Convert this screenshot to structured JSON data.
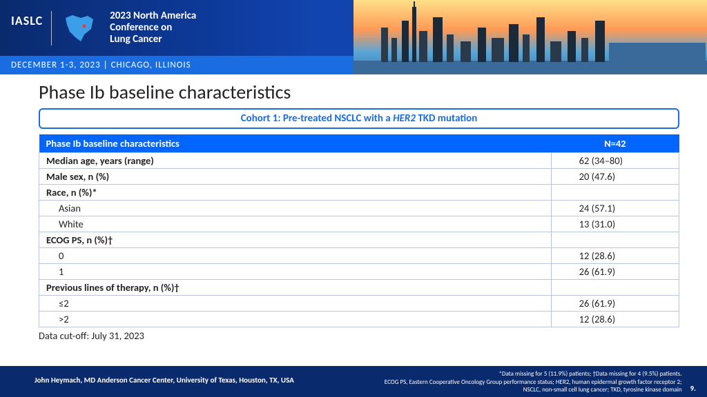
{
  "banner": {
    "org": "IASLC",
    "conference_line1": "2023 North America",
    "conference_line2": "Conference on",
    "conference_line3": "Lung Cancer",
    "date_location": "DECEMBER 1-3, 2023  |  CHICAGO, ILLINOIS"
  },
  "title": "Phase Ib baseline characteristics",
  "cohort_label_pre": "Cohort 1: Pre-treated NSCLC with a ",
  "cohort_gene": "HER2",
  "cohort_label_post": " TKD mutation",
  "table": {
    "header_left": "Phase Ib baseline characteristics",
    "header_right": "N=42",
    "rows": [
      {
        "label": "Median age, years (range)",
        "value": "62 (34–80)",
        "bold": true,
        "indent": false
      },
      {
        "label": "Male sex, n (%)",
        "value": "20 (47.6)",
        "bold": true,
        "indent": false
      },
      {
        "label": "Race, n (%)*",
        "value": "",
        "bold": true,
        "indent": false
      },
      {
        "label": "Asian",
        "value": "24 (57.1)",
        "bold": false,
        "indent": true
      },
      {
        "label": "White",
        "value": "13 (31.0)",
        "bold": false,
        "indent": true
      },
      {
        "label": "ECOG PS, n (%)†",
        "value": "",
        "bold": true,
        "indent": false
      },
      {
        "label": "0",
        "value": "12 (28.6)",
        "bold": false,
        "indent": true
      },
      {
        "label": "1",
        "value": "26 (61.9)",
        "bold": false,
        "indent": true
      },
      {
        "label": "Previous lines of therapy, n (%)†",
        "value": "",
        "bold": true,
        "indent": false
      },
      {
        "label": "≤2",
        "value": "26 (61.9)",
        "bold": false,
        "indent": true
      },
      {
        "label": ">2",
        "value": "12 (28.6)",
        "bold": false,
        "indent": true
      }
    ]
  },
  "cutoff": "Data cut-off: July 31, 2023",
  "footer": {
    "author": "John Heymach, MD Anderson Cancer Center, University of Texas, Houston, TX, USA",
    "note1": "*Data missing for 5 (11.9%) patients; †Data missing for 4 (9.5%) patients.",
    "note2": "ECOG PS, Eastern Cooperative Oncology Group performance status; HER2, human epidermal growth factor receptor 2;",
    "note3": "NSCLC, non-small cell lung cancer; TKD, tyrosine kinase domain",
    "page": "9."
  },
  "colors": {
    "header_blue": "#0066ff",
    "accent_blue": "#1a6de0",
    "dark_navy": "#0a2a6e",
    "border_gray": "#b8c5e0"
  }
}
